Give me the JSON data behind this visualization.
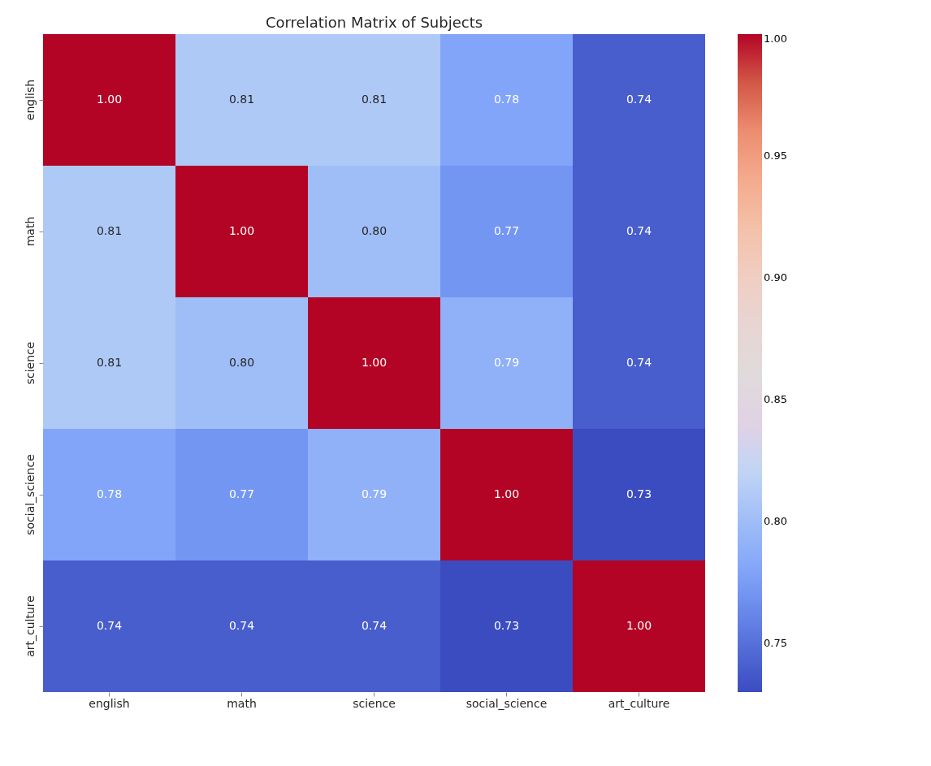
{
  "chart_data": {
    "type": "heatmap",
    "title": "Correlation Matrix of Subjects",
    "categories": [
      "english",
      "math",
      "science",
      "social_science",
      "art_culture"
    ],
    "y_categories": [
      "english",
      "math",
      "science",
      "social_science",
      "art_culture"
    ],
    "cells": [
      [
        1.0,
        0.81,
        0.81,
        0.78,
        0.74
      ],
      [
        0.81,
        1.0,
        0.8,
        0.77,
        0.74
      ],
      [
        0.81,
        0.8,
        1.0,
        0.79,
        0.74
      ],
      [
        0.78,
        0.77,
        0.79,
        1.0,
        0.73
      ],
      [
        0.74,
        0.74,
        0.74,
        0.73,
        1.0
      ]
    ],
    "cell_labels": [
      [
        "1.00",
        "0.81",
        "0.81",
        "0.78",
        "0.74"
      ],
      [
        "0.81",
        "1.00",
        "0.80",
        "0.77",
        "0.74"
      ],
      [
        "0.81",
        "0.80",
        "1.00",
        "0.79",
        "0.74"
      ],
      [
        "0.78",
        "0.77",
        "0.79",
        "1.00",
        "0.73"
      ],
      [
        "0.74",
        "0.74",
        "0.74",
        "0.73",
        "1.00"
      ]
    ],
    "clim": [
      0.73,
      1.0
    ],
    "cticks": [
      0.75,
      {
        "value": 0.8,
        "label": "0.80"
      },
      0.85,
      {
        "value": 0.9,
        "label": "0.90"
      },
      0.95,
      {
        "value": 1.0,
        "label": "1.00"
      }
    ]
  }
}
